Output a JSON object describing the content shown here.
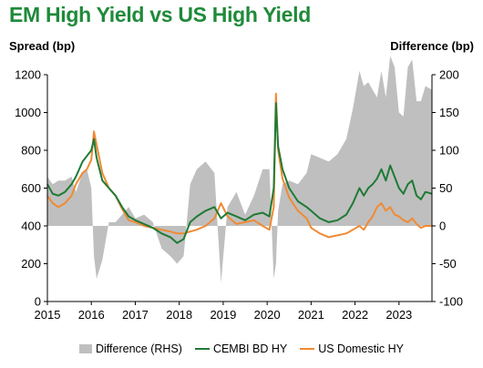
{
  "title": "EM High Yield vs US High Yield",
  "chart_data": {
    "type": "line",
    "title": "EM High Yield vs US High Yield",
    "ylabel": "Spread (bp)",
    "y2label": "Difference (bp)",
    "ylim": [
      0,
      1200
    ],
    "y2lim": [
      -100,
      200
    ],
    "yticks": [
      "0",
      "200",
      "400",
      "600",
      "800",
      "1000",
      "1200"
    ],
    "y2ticks": [
      "-100",
      "-50",
      "0",
      "50",
      "100",
      "150",
      "200"
    ],
    "xlim": [
      2015.0,
      2023.75
    ],
    "xticks": [
      "2015",
      "2016",
      "2017",
      "2018",
      "2019",
      "2020",
      "2021",
      "2022",
      "2023"
    ],
    "legend_position": "bottom",
    "colors": {
      "difference": "#bfbfbf",
      "cembi": "#1f7a35",
      "us": "#f08a34"
    },
    "series": [
      {
        "name": "CEMBI BD HY",
        "axis": "left",
        "style": "line",
        "x": [
          2015.0,
          2015.12,
          2015.25,
          2015.4,
          2015.55,
          2015.65,
          2015.8,
          2015.9,
          2016.0,
          2016.06,
          2016.12,
          2016.25,
          2016.4,
          2016.55,
          2016.7,
          2016.85,
          2017.0,
          2017.2,
          2017.4,
          2017.6,
          2017.8,
          2017.95,
          2018.1,
          2018.25,
          2018.4,
          2018.6,
          2018.8,
          2018.95,
          2019.1,
          2019.3,
          2019.5,
          2019.7,
          2019.9,
          2020.05,
          2020.15,
          2020.2,
          2020.25,
          2020.35,
          2020.5,
          2020.7,
          2020.9,
          2021.0,
          2021.2,
          2021.4,
          2021.6,
          2021.8,
          2021.95,
          2022.1,
          2022.2,
          2022.3,
          2022.4,
          2022.5,
          2022.6,
          2022.7,
          2022.8,
          2022.9,
          2023.0,
          2023.1,
          2023.2,
          2023.3,
          2023.4,
          2023.5,
          2023.6,
          2023.75
        ],
        "values": [
          620,
          570,
          560,
          580,
          620,
          660,
          740,
          770,
          800,
          860,
          760,
          640,
          600,
          560,
          500,
          450,
          430,
          410,
          390,
          360,
          340,
          310,
          330,
          420,
          450,
          480,
          500,
          440,
          470,
          450,
          430,
          460,
          470,
          450,
          600,
          1050,
          820,
          700,
          600,
          530,
          500,
          480,
          440,
          420,
          430,
          460,
          520,
          600,
          560,
          600,
          620,
          650,
          700,
          640,
          720,
          660,
          600,
          570,
          620,
          640,
          560,
          540,
          580,
          570
        ]
      },
      {
        "name": "US Domestic HY",
        "axis": "left",
        "style": "line",
        "x": [
          2015.0,
          2015.12,
          2015.25,
          2015.4,
          2015.55,
          2015.65,
          2015.8,
          2015.9,
          2016.0,
          2016.06,
          2016.12,
          2016.25,
          2016.4,
          2016.55,
          2016.7,
          2016.85,
          2017.0,
          2017.2,
          2017.4,
          2017.6,
          2017.8,
          2017.95,
          2018.1,
          2018.25,
          2018.4,
          2018.6,
          2018.8,
          2018.95,
          2019.1,
          2019.3,
          2019.5,
          2019.7,
          2019.9,
          2020.05,
          2020.15,
          2020.2,
          2020.25,
          2020.35,
          2020.5,
          2020.7,
          2020.9,
          2021.0,
          2021.2,
          2021.4,
          2021.6,
          2021.8,
          2021.95,
          2022.1,
          2022.2,
          2022.3,
          2022.4,
          2022.5,
          2022.6,
          2022.7,
          2022.8,
          2022.9,
          2023.0,
          2023.1,
          2023.2,
          2023.3,
          2023.4,
          2023.5,
          2023.6,
          2023.75
        ],
        "values": [
          560,
          520,
          500,
          520,
          560,
          620,
          680,
          700,
          750,
          900,
          830,
          680,
          600,
          560,
          490,
          430,
          420,
          400,
          390,
          380,
          370,
          360,
          360,
          370,
          380,
          400,
          440,
          520,
          450,
          410,
          420,
          430,
          400,
          380,
          500,
          1100,
          800,
          650,
          550,
          480,
          440,
          390,
          360,
          340,
          350,
          360,
          380,
          400,
          380,
          420,
          450,
          500,
          520,
          480,
          500,
          460,
          450,
          430,
          420,
          440,
          410,
          390,
          400,
          400
        ]
      },
      {
        "name": "Difference (RHS)",
        "axis": "right",
        "style": "area",
        "x": [
          2015.0,
          2015.12,
          2015.25,
          2015.4,
          2015.55,
          2015.65,
          2015.8,
          2015.9,
          2016.0,
          2016.06,
          2016.12,
          2016.25,
          2016.4,
          2016.55,
          2016.7,
          2016.85,
          2017.0,
          2017.2,
          2017.4,
          2017.6,
          2017.8,
          2017.95,
          2018.1,
          2018.25,
          2018.4,
          2018.6,
          2018.8,
          2018.95,
          2019.1,
          2019.3,
          2019.5,
          2019.7,
          2019.9,
          2020.05,
          2020.15,
          2020.2,
          2020.25,
          2020.35,
          2020.5,
          2020.7,
          2020.9,
          2021.0,
          2021.2,
          2021.4,
          2021.6,
          2021.8,
          2021.95,
          2022.1,
          2022.2,
          2022.3,
          2022.4,
          2022.5,
          2022.6,
          2022.7,
          2022.8,
          2022.9,
          2023.0,
          2023.1,
          2023.2,
          2023.3,
          2023.4,
          2023.5,
          2023.6,
          2023.75
        ],
        "values": [
          65,
          55,
          60,
          60,
          65,
          45,
          70,
          75,
          50,
          -40,
          -70,
          -45,
          5,
          5,
          15,
          25,
          10,
          15,
          5,
          -30,
          -40,
          -50,
          -40,
          55,
          75,
          85,
          70,
          -75,
          25,
          45,
          15,
          40,
          75,
          75,
          -70,
          -50,
          20,
          55,
          60,
          55,
          70,
          95,
          90,
          85,
          95,
          115,
          155,
          205,
          185,
          190,
          180,
          170,
          205,
          170,
          225,
          210,
          150,
          145,
          210,
          220,
          165,
          165,
          185,
          180
        ]
      }
    ]
  }
}
